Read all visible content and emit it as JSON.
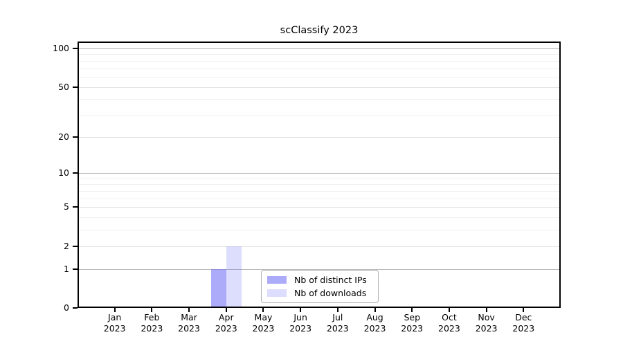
{
  "chart_data": {
    "type": "bar",
    "title": "scClassify 2023",
    "categories": [
      "Jan 2023",
      "Feb 2023",
      "Mar 2023",
      "Apr 2023",
      "May 2023",
      "Jun 2023",
      "Jul 2023",
      "Aug 2023",
      "Sep 2023",
      "Oct 2023",
      "Nov 2023",
      "Dec 2023"
    ],
    "series": [
      {
        "name": "Nb of distinct IPs",
        "color": "rgba(102,102,245,0.55)",
        "values": [
          0,
          0,
          0,
          1,
          0,
          0,
          0,
          0,
          0,
          0,
          0,
          0
        ]
      },
      {
        "name": "Nb of downloads",
        "color": "rgba(102,102,245,0.22)",
        "values": [
          0,
          0,
          0,
          2,
          0,
          0,
          0,
          0,
          0,
          0,
          0,
          0
        ]
      }
    ],
    "y_axis": {
      "scale": "log1p",
      "ticks": [
        0,
        1,
        2,
        5,
        10,
        20,
        50,
        100
      ],
      "minor_gridlines": [
        3,
        4,
        6,
        7,
        8,
        9,
        30,
        40,
        60,
        70,
        80,
        90
      ],
      "top_value": 112
    },
    "grid": true,
    "legend_position": "lower center",
    "bar_group": "side-by-side"
  },
  "colors": {
    "grid_decade": "#b8b8b8",
    "grid_mid": "#e2e2e2",
    "grid_minor": "#efefef",
    "axis": "#000000",
    "legend_border": "#b0b0b0"
  }
}
